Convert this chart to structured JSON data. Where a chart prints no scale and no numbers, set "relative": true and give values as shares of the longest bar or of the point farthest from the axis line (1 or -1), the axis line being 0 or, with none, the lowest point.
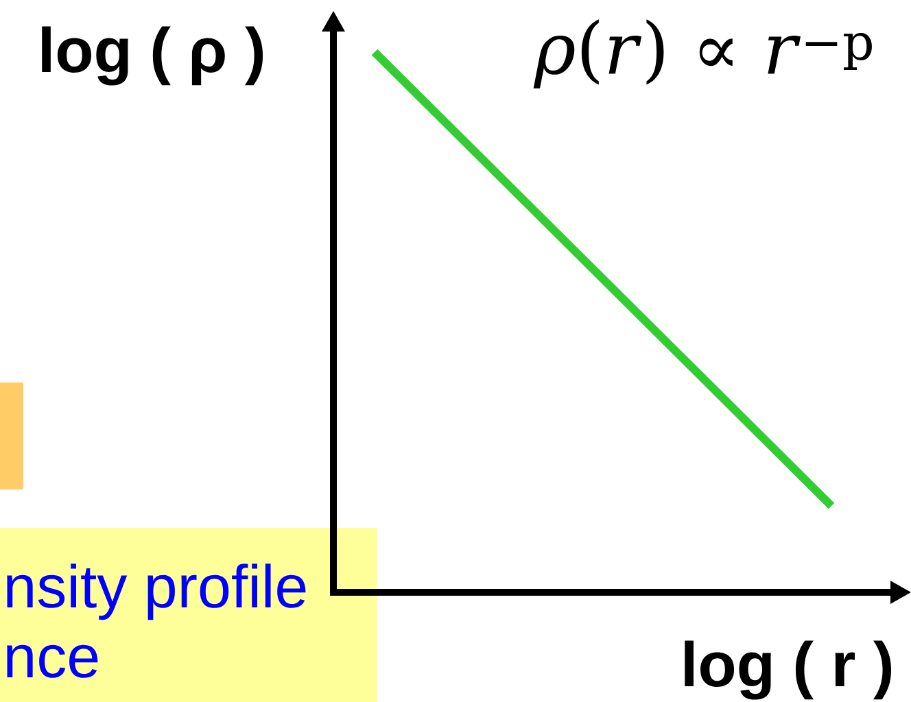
{
  "chart_data": {
    "type": "line",
    "relative": true,
    "categories": [
      null,
      null
    ],
    "values": [
      1,
      0.16
    ],
    "color": "#33cc33",
    "xlabel": "log ( r )",
    "ylabel": "log ( ρ )",
    "annotations": [
      "*ρ*(*r*) ∝ *r*$^{−p}$",
      "nsity profile",
      "nce"
    ]
  }
}
